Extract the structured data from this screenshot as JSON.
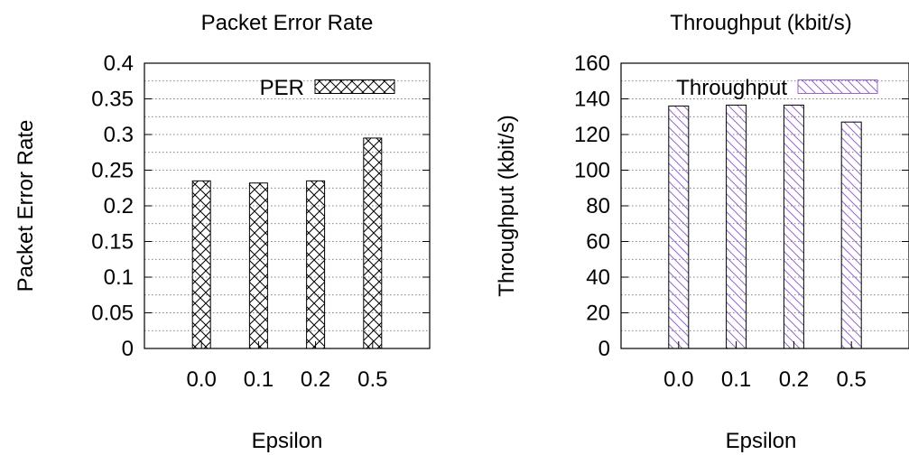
{
  "chart_data": [
    {
      "type": "bar",
      "title": "Packet Error Rate",
      "xlabel": "Epsilon",
      "ylabel": "Packet Error Rate",
      "categories": [
        "0.0",
        "0.1",
        "0.2",
        "0.5"
      ],
      "series": [
        {
          "name": "PER",
          "values": [
            0.235,
            0.232,
            0.235,
            0.295
          ],
          "pattern": "crosshatch",
          "color": "#000000"
        }
      ],
      "ylim": [
        0,
        0.4
      ],
      "yticks": [
        "0",
        "0.05",
        "0.1",
        "0.15",
        "0.2",
        "0.25",
        "0.3",
        "0.35",
        "0.4"
      ],
      "grid": true,
      "legend": "top-right"
    },
    {
      "type": "bar",
      "title": "Throughput (kbit/s)",
      "xlabel": "Epsilon",
      "ylabel": "Throughput (kbit/s)",
      "categories": [
        "0.0",
        "0.1",
        "0.2",
        "0.5"
      ],
      "series": [
        {
          "name": "Throughput",
          "values": [
            136,
            136.5,
            136.5,
            127
          ],
          "pattern": "diagonal",
          "color": "#9966cc"
        }
      ],
      "ylim": [
        0,
        160
      ],
      "yticks": [
        "0",
        "20",
        "40",
        "60",
        "80",
        "100",
        "120",
        "140",
        "160"
      ],
      "grid": true,
      "legend": "top-right"
    }
  ]
}
